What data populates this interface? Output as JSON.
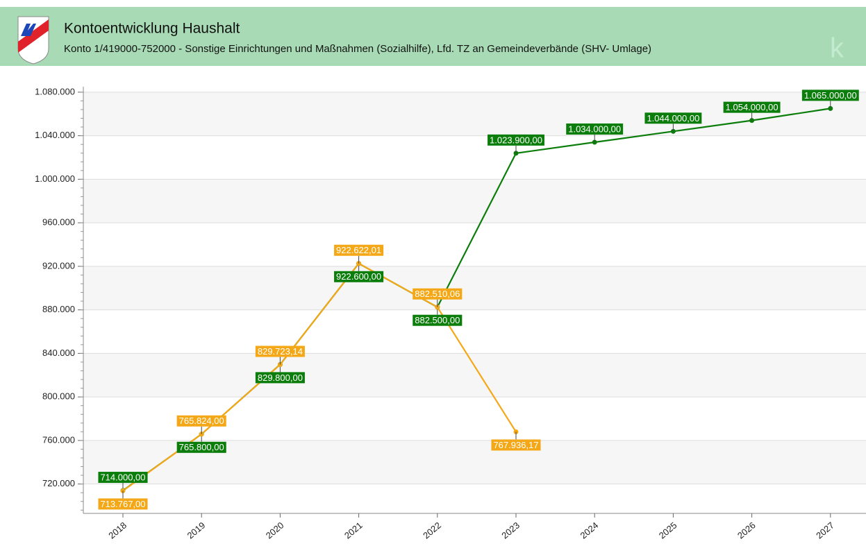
{
  "chart_data": {
    "type": "line",
    "title": "Kontoentwicklung Haushalt",
    "subtitle": "Konto 1/419000-752000 - Sonstige Einrichtungen und Maßnahmen (Sozialhilfe), Lfd. TZ an Gemeindeverbände (SHV- Umlage)",
    "categories": [
      "2018",
      "2019",
      "2020",
      "2021",
      "2022",
      "2023",
      "2024",
      "2025",
      "2026",
      "2027"
    ],
    "series": [
      {
        "color": "#0b7d0b",
        "values": [
          714000,
          765800,
          829800,
          922600,
          882500,
          1023900,
          1034000,
          1044000,
          1054000,
          1065000
        ],
        "value_labels": [
          "714.000,00",
          "765.800,00",
          "829.800,00",
          "922.600,00",
          "882.500,00",
          "1.023.900,00",
          "1.034.000,00",
          "1.044.000,00",
          "1.054.000,00",
          "1.065.000,00"
        ]
      },
      {
        "color": "#f5a817",
        "values": [
          713767,
          765824,
          829723.14,
          922622.01,
          882510.06,
          767936.17,
          null,
          null,
          null,
          null
        ],
        "value_labels": [
          "713.767,00",
          "765.824,00",
          "829.723,14",
          "922.622,01",
          "882.510,06",
          "767.936,17",
          null,
          null,
          null,
          null
        ]
      }
    ],
    "ylim": [
      693000,
      1085000
    ],
    "yticks": [
      {
        "value": 720000,
        "label": "720.000"
      },
      {
        "value": 760000,
        "label": "760.000"
      },
      {
        "value": 800000,
        "label": "800.000"
      },
      {
        "value": 840000,
        "label": "840.000"
      },
      {
        "value": 880000,
        "label": "880.000"
      },
      {
        "value": 920000,
        "label": "920.000"
      },
      {
        "value": 960000,
        "label": "960.000"
      },
      {
        "value": 1000000,
        "label": "1.000.000"
      },
      {
        "value": 1040000,
        "label": "1.040.000"
      },
      {
        "value": 1080000,
        "label": "1.080.000"
      }
    ],
    "grid": true
  }
}
